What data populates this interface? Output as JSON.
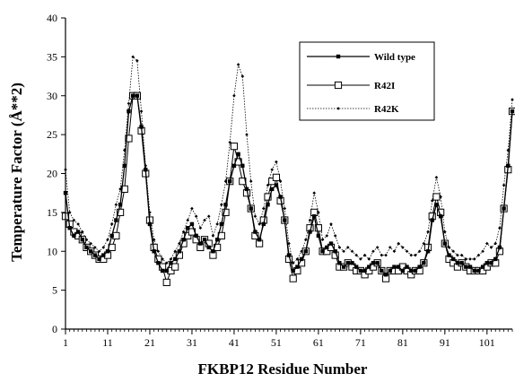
{
  "chart_data": {
    "type": "line",
    "title": "",
    "xlabel": "FKBP12 Residue Number",
    "ylabel": "Temperature Factor (Å**2)",
    "xlim": [
      1,
      107
    ],
    "ylim": [
      0,
      40
    ],
    "x_ticks": [
      "1",
      "11",
      "21",
      "31",
      "41",
      "51",
      "61",
      "71",
      "81",
      "91",
      "101"
    ],
    "y_ticks": [
      "0",
      "5",
      "10",
      "15",
      "20",
      "25",
      "30",
      "35",
      "40"
    ],
    "grid": false,
    "legend_position": "top-right",
    "x": [
      1,
      2,
      3,
      4,
      5,
      6,
      7,
      8,
      9,
      10,
      11,
      12,
      13,
      14,
      15,
      16,
      17,
      18,
      19,
      20,
      21,
      22,
      23,
      24,
      25,
      26,
      27,
      28,
      29,
      30,
      31,
      32,
      33,
      34,
      35,
      36,
      37,
      38,
      39,
      40,
      41,
      42,
      43,
      44,
      45,
      46,
      47,
      48,
      49,
      50,
      51,
      52,
      53,
      54,
      55,
      56,
      57,
      58,
      59,
      60,
      61,
      62,
      63,
      64,
      65,
      66,
      67,
      68,
      69,
      70,
      71,
      72,
      73,
      74,
      75,
      76,
      77,
      78,
      79,
      80,
      81,
      82,
      83,
      84,
      85,
      86,
      87,
      88,
      89,
      90,
      91,
      92,
      93,
      94,
      95,
      96,
      97,
      98,
      99,
      100,
      101,
      102,
      103,
      104,
      105,
      106,
      107
    ],
    "series": [
      {
        "name": "Wild type",
        "marker": "filled-square",
        "values": [
          17.5,
          13.0,
          12.0,
          12.5,
          11.5,
          10.5,
          10.0,
          9.5,
          9.0,
          9.5,
          10.0,
          12.0,
          14.0,
          16.0,
          21.0,
          28.0,
          30.0,
          30.0,
          26.0,
          20.5,
          13.5,
          10.0,
          8.5,
          7.5,
          7.5,
          8.5,
          9.0,
          10.0,
          11.5,
          13.0,
          13.5,
          12.0,
          11.0,
          11.5,
          10.5,
          10.0,
          11.5,
          13.5,
          16.0,
          19.0,
          21.0,
          22.5,
          21.0,
          18.0,
          15.5,
          12.5,
          11.5,
          13.5,
          16.0,
          18.0,
          18.5,
          17.0,
          14.0,
          9.5,
          7.5,
          8.0,
          9.0,
          10.0,
          12.5,
          14.5,
          12.0,
          10.0,
          10.5,
          11.0,
          10.0,
          8.5,
          8.0,
          8.5,
          8.5,
          8.0,
          7.5,
          7.5,
          8.0,
          8.5,
          8.5,
          7.5,
          7.0,
          7.5,
          8.0,
          8.0,
          7.5,
          8.0,
          7.5,
          7.5,
          8.0,
          8.5,
          10.0,
          14.0,
          16.0,
          14.5,
          11.0,
          9.5,
          9.0,
          8.5,
          8.5,
          8.0,
          8.0,
          7.5,
          7.5,
          8.0,
          8.5,
          8.5,
          9.0,
          10.5,
          15.5,
          21.0,
          28.0
        ]
      },
      {
        "name": "R42I",
        "marker": "open-square",
        "values": [
          14.5,
          13.5,
          12.5,
          12.0,
          11.5,
          10.5,
          10.0,
          9.5,
          9.0,
          9.0,
          9.5,
          10.5,
          12.0,
          15.0,
          18.0,
          24.5,
          30.0,
          30.0,
          25.5,
          20.0,
          14.0,
          10.5,
          9.0,
          8.0,
          6.0,
          7.5,
          8.0,
          9.5,
          11.0,
          12.0,
          12.5,
          11.5,
          10.5,
          11.5,
          11.0,
          9.5,
          10.5,
          12.0,
          15.0,
          19.0,
          23.5,
          21.5,
          19.0,
          17.5,
          15.5,
          12.0,
          11.0,
          14.0,
          17.0,
          19.0,
          19.5,
          16.5,
          14.0,
          9.0,
          6.5,
          7.5,
          8.5,
          10.0,
          13.0,
          15.0,
          13.0,
          10.0,
          10.0,
          10.5,
          9.5,
          8.0,
          8.0,
          8.5,
          8.0,
          7.5,
          7.5,
          7.0,
          7.5,
          8.0,
          8.5,
          7.5,
          6.5,
          7.5,
          7.5,
          7.5,
          8.0,
          7.5,
          7.0,
          7.5,
          7.5,
          8.5,
          10.5,
          14.5,
          17.0,
          15.0,
          11.0,
          9.0,
          8.5,
          8.0,
          8.5,
          8.0,
          7.5,
          7.5,
          7.5,
          7.5,
          8.0,
          8.5,
          8.5,
          10.0,
          15.5,
          20.5,
          28.0
        ]
      },
      {
        "name": "R42K",
        "marker": "small-diamond",
        "values": [
          20.5,
          15.0,
          14.0,
          13.5,
          12.5,
          11.5,
          11.0,
          10.5,
          10.0,
          10.5,
          11.5,
          13.5,
          16.0,
          18.0,
          23.0,
          29.0,
          35.0,
          34.5,
          28.0,
          21.0,
          15.0,
          11.5,
          10.0,
          9.0,
          8.5,
          9.0,
          10.0,
          11.0,
          12.5,
          14.0,
          15.5,
          14.5,
          13.0,
          14.0,
          14.5,
          12.0,
          13.5,
          16.0,
          19.0,
          24.0,
          30.0,
          34.0,
          32.5,
          25.0,
          19.0,
          14.5,
          13.5,
          15.5,
          18.5,
          20.5,
          21.5,
          19.0,
          15.5,
          11.0,
          8.5,
          9.0,
          10.0,
          11.5,
          14.0,
          17.5,
          15.0,
          11.5,
          12.0,
          13.5,
          12.0,
          10.5,
          10.0,
          10.5,
          10.0,
          9.5,
          9.0,
          9.5,
          9.0,
          10.0,
          10.5,
          9.5,
          9.5,
          10.5,
          10.0,
          11.0,
          10.5,
          10.0,
          9.5,
          9.5,
          10.0,
          11.0,
          12.5,
          16.5,
          19.5,
          17.0,
          12.5,
          10.5,
          10.0,
          9.5,
          9.5,
          9.0,
          9.0,
          9.0,
          9.5,
          10.0,
          11.0,
          10.5,
          11.0,
          13.0,
          18.5,
          23.0,
          29.5
        ]
      }
    ]
  }
}
